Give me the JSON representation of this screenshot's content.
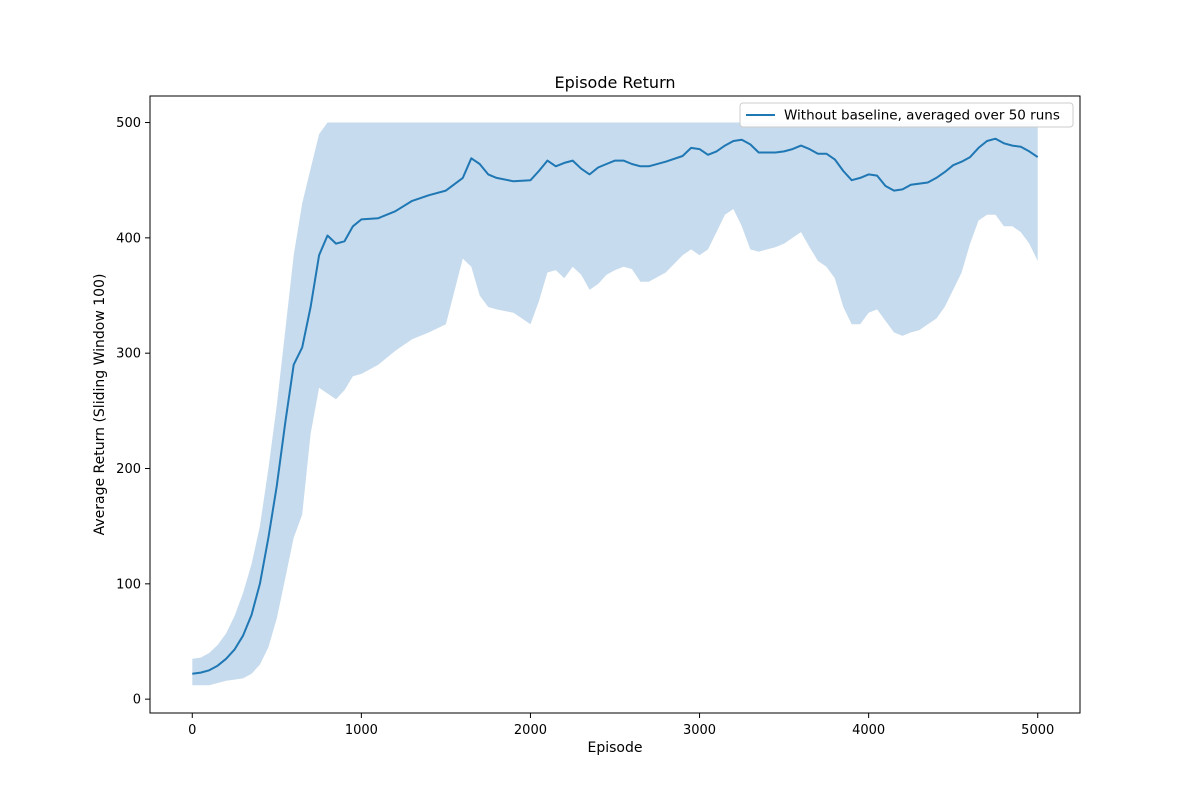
{
  "chart_data": {
    "type": "line",
    "title": "Episode Return",
    "xlabel": "Episode",
    "ylabel": "Average Return (Sliding Window 100)",
    "xlim": [
      -250,
      5250
    ],
    "ylim": [
      -12,
      523
    ],
    "xticks": [
      0,
      1000,
      2000,
      3000,
      4000,
      5000
    ],
    "yticks": [
      0,
      100,
      200,
      300,
      400,
      500
    ],
    "grid": false,
    "legend": {
      "position": "top-right"
    },
    "colors": {
      "line": "#1f77b4",
      "band": "#c6dbed",
      "frame": "#000000"
    },
    "series": [
      {
        "name": "Without baseline, averaged over 50 runs",
        "x": [
          0,
          50,
          100,
          150,
          200,
          250,
          300,
          350,
          400,
          450,
          500,
          550,
          600,
          650,
          700,
          750,
          800,
          850,
          900,
          950,
          1000,
          1100,
          1200,
          1300,
          1400,
          1500,
          1600,
          1650,
          1700,
          1750,
          1800,
          1900,
          2000,
          2050,
          2100,
          2150,
          2200,
          2250,
          2300,
          2350,
          2400,
          2450,
          2500,
          2550,
          2600,
          2650,
          2700,
          2800,
          2900,
          2950,
          3000,
          3050,
          3100,
          3150,
          3200,
          3250,
          3300,
          3350,
          3400,
          3450,
          3500,
          3550,
          3600,
          3650,
          3700,
          3750,
          3800,
          3850,
          3900,
          3950,
          4000,
          4050,
          4100,
          4150,
          4200,
          4250,
          4300,
          4350,
          4400,
          4450,
          4500,
          4550,
          4600,
          4650,
          4700,
          4750,
          4800,
          4850,
          4900,
          4950,
          5000
        ],
        "y": [
          22,
          23,
          25,
          29,
          35,
          43,
          55,
          73,
          100,
          140,
          185,
          240,
          290,
          305,
          340,
          385,
          402,
          395,
          397,
          410,
          416,
          417,
          423,
          432,
          437,
          441,
          452,
          469,
          464,
          455,
          452,
          449,
          450,
          458,
          467,
          462,
          465,
          467,
          460,
          455,
          461,
          464,
          467,
          467,
          464,
          462,
          462,
          466,
          471,
          478,
          477,
          472,
          475,
          480,
          484,
          485,
          481,
          474,
          474,
          474,
          475,
          477,
          480,
          477,
          473,
          473,
          468,
          458,
          450,
          452,
          455,
          454,
          445,
          441,
          442,
          446,
          447,
          448,
          452,
          457,
          463,
          466,
          470,
          478,
          484,
          486,
          482,
          480,
          479,
          475,
          470
        ],
        "upper": [
          35,
          36,
          40,
          47,
          57,
          72,
          92,
          117,
          150,
          200,
          255,
          320,
          385,
          430,
          460,
          490,
          500,
          500,
          500,
          500,
          500,
          500,
          500,
          500,
          500,
          500,
          500,
          500,
          500,
          500,
          500,
          500,
          500,
          500,
          500,
          500,
          500,
          500,
          500,
          500,
          500,
          500,
          500,
          500,
          500,
          500,
          500,
          500,
          500,
          500,
          500,
          500,
          500,
          500,
          500,
          500,
          500,
          500,
          500,
          500,
          500,
          500,
          500,
          500,
          500,
          500,
          500,
          500,
          500,
          500,
          500,
          500,
          500,
          500,
          500,
          500,
          500,
          500,
          500,
          500,
          500,
          500,
          500,
          500,
          500,
          500,
          500,
          500,
          500,
          500,
          500
        ],
        "lower": [
          12,
          12,
          12,
          14,
          16,
          17,
          18,
          22,
          30,
          45,
          70,
          105,
          140,
          160,
          230,
          270,
          265,
          260,
          268,
          280,
          282,
          290,
          302,
          312,
          318,
          325,
          382,
          375,
          350,
          340,
          338,
          335,
          325,
          345,
          370,
          372,
          365,
          375,
          368,
          355,
          360,
          368,
          372,
          375,
          373,
          362,
          362,
          370,
          385,
          390,
          385,
          390,
          405,
          420,
          425,
          410,
          390,
          388,
          390,
          392,
          395,
          400,
          405,
          392,
          380,
          375,
          365,
          340,
          325,
          325,
          335,
          338,
          328,
          318,
          315,
          318,
          320,
          325,
          330,
          340,
          355,
          370,
          395,
          415,
          420,
          420,
          410,
          410,
          405,
          395,
          380
        ]
      }
    ]
  }
}
